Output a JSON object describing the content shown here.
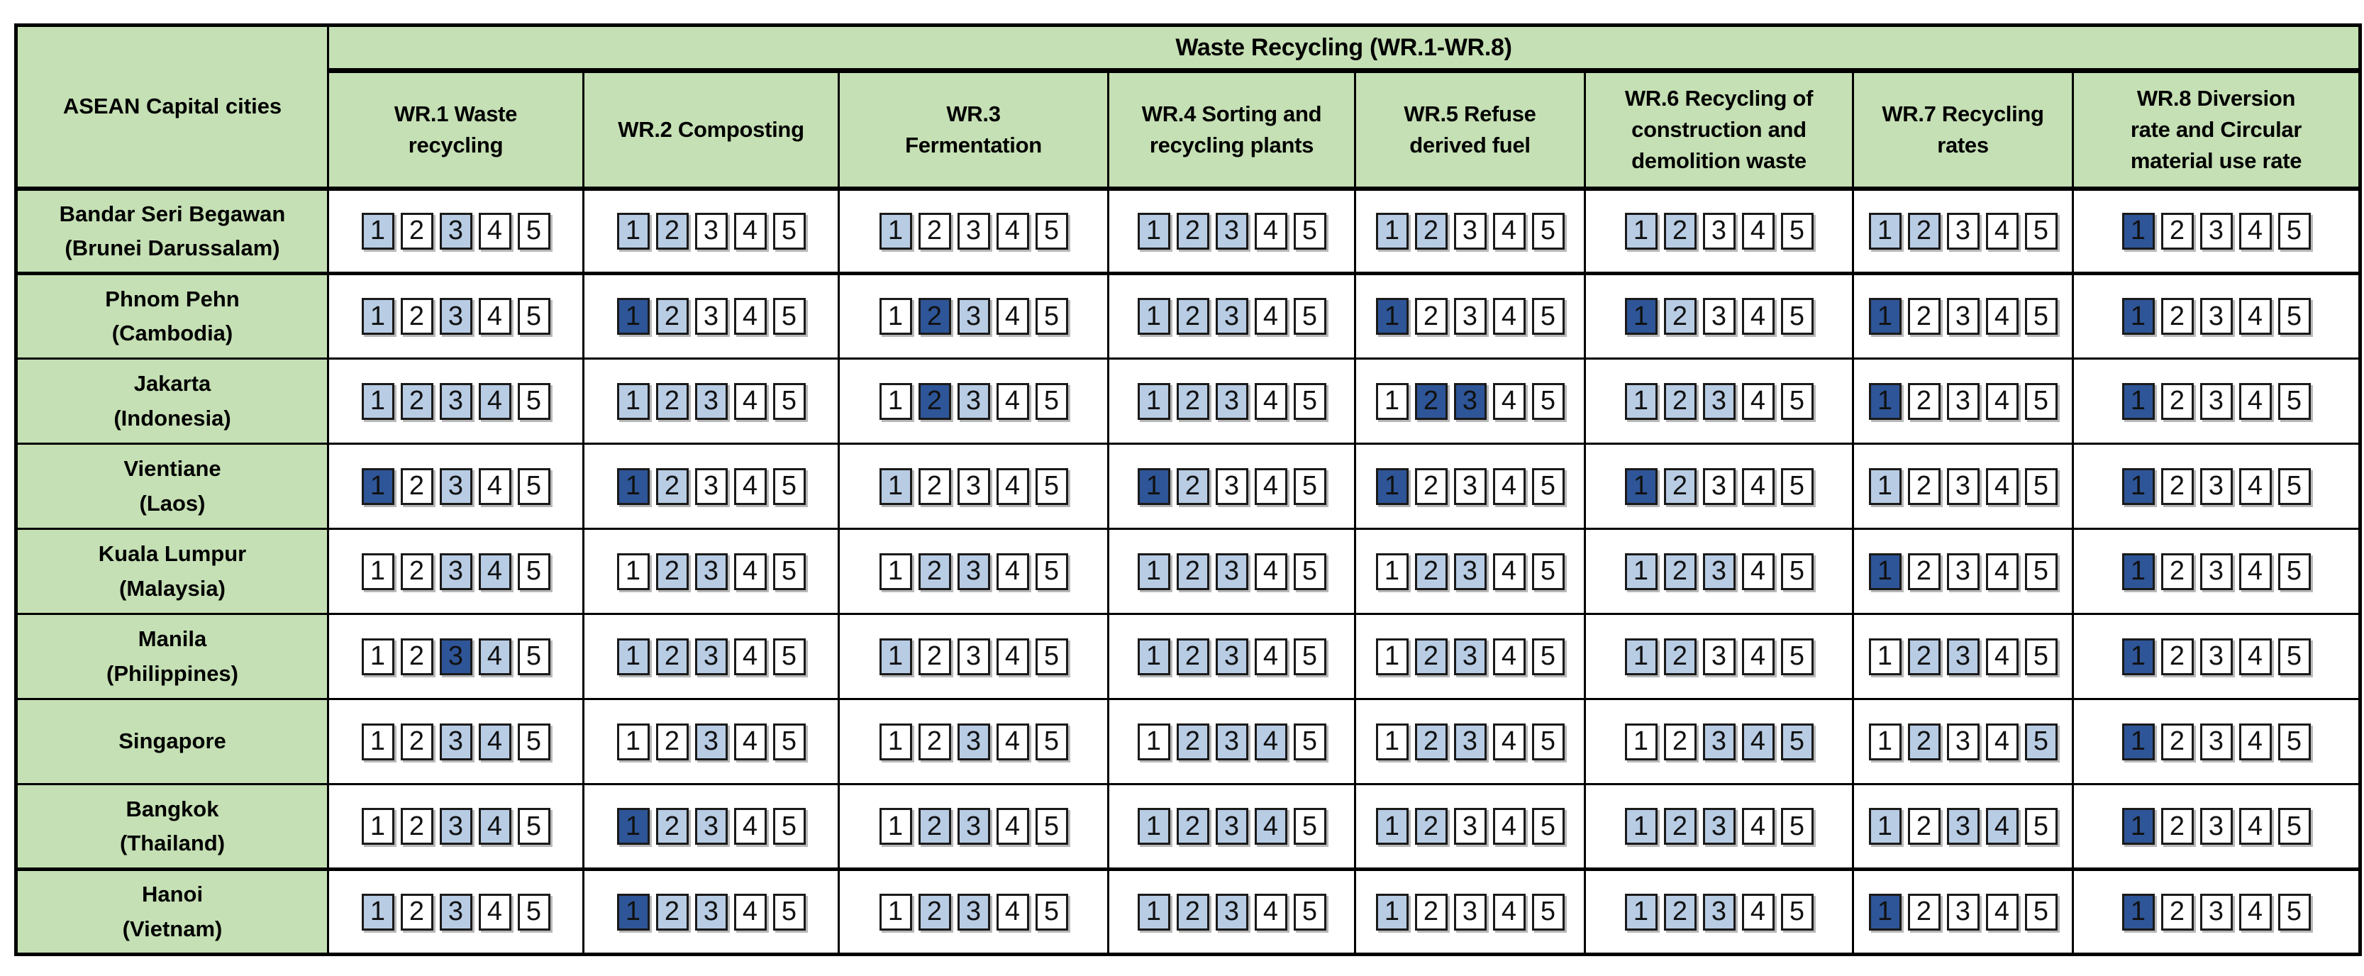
{
  "table_title": "Waste Recycling (WR.1-WR.8)",
  "corner_header": "ASEAN Capital cities",
  "scale": [
    "1",
    "2",
    "3",
    "4",
    "5"
  ],
  "colors": {
    "header_green": "#C5E0B4",
    "box_unselected": "#FFFFFF",
    "box_selected_light": "#B8CCE4",
    "box_selected_dark": "#2E5597",
    "box_border": "#1A1A1A",
    "grid_border": "#000000"
  },
  "rating_legend": {
    "0": "not selected (white)",
    "1": "selected (light blue)",
    "2": "selected (dark blue)"
  },
  "columns": [
    {
      "id": "WR.1",
      "label": "WR.1 Waste\nrecycling"
    },
    {
      "id": "WR.2",
      "label": "WR.2 Composting"
    },
    {
      "id": "WR.3",
      "label": "WR.3\nFermentation"
    },
    {
      "id": "WR.4",
      "label": "WR.4 Sorting and\nrecycling plants"
    },
    {
      "id": "WR.5",
      "label": "WR.5 Refuse\nderived fuel"
    },
    {
      "id": "WR.6",
      "label": "WR.6 Recycling of\nconstruction and\ndemolition waste"
    },
    {
      "id": "WR.7",
      "label": "WR.7 Recycling\nrates"
    },
    {
      "id": "WR.8",
      "label": "WR.8 Diversion\nrate and Circular\nmaterial use rate"
    }
  ],
  "rows": [
    {
      "city": "Bandar Seri Begawan",
      "country": "(Brunei Darussalam)",
      "cells": [
        [
          1,
          0,
          1,
          0,
          0
        ],
        [
          1,
          1,
          0,
          0,
          0
        ],
        [
          1,
          0,
          0,
          0,
          0
        ],
        [
          1,
          1,
          1,
          0,
          0
        ],
        [
          1,
          1,
          0,
          0,
          0
        ],
        [
          1,
          1,
          0,
          0,
          0
        ],
        [
          1,
          1,
          0,
          0,
          0
        ],
        [
          2,
          0,
          0,
          0,
          0
        ]
      ]
    },
    {
      "city": "Phnom Pehn",
      "country": "(Cambodia)",
      "cells": [
        [
          1,
          0,
          1,
          0,
          0
        ],
        [
          2,
          1,
          0,
          0,
          0
        ],
        [
          0,
          2,
          1,
          0,
          0
        ],
        [
          1,
          1,
          1,
          0,
          0
        ],
        [
          2,
          0,
          0,
          0,
          0
        ],
        [
          2,
          1,
          0,
          0,
          0
        ],
        [
          2,
          0,
          0,
          0,
          0
        ],
        [
          2,
          0,
          0,
          0,
          0
        ]
      ]
    },
    {
      "city": "Jakarta",
      "country": "(Indonesia)",
      "cells": [
        [
          1,
          1,
          1,
          1,
          0
        ],
        [
          1,
          1,
          1,
          0,
          0
        ],
        [
          0,
          2,
          1,
          0,
          0
        ],
        [
          1,
          1,
          1,
          0,
          0
        ],
        [
          0,
          2,
          2,
          0,
          0
        ],
        [
          1,
          1,
          1,
          0,
          0
        ],
        [
          2,
          0,
          0,
          0,
          0
        ],
        [
          2,
          0,
          0,
          0,
          0
        ]
      ]
    },
    {
      "city": "Vientiane",
      "country": "(Laos)",
      "cells": [
        [
          2,
          0,
          1,
          0,
          0
        ],
        [
          2,
          1,
          0,
          0,
          0
        ],
        [
          1,
          0,
          0,
          0,
          0
        ],
        [
          2,
          1,
          0,
          0,
          0
        ],
        [
          2,
          0,
          0,
          0,
          0
        ],
        [
          2,
          1,
          0,
          0,
          0
        ],
        [
          1,
          0,
          0,
          0,
          0
        ],
        [
          2,
          0,
          0,
          0,
          0
        ]
      ]
    },
    {
      "city": "Kuala Lumpur",
      "country": "(Malaysia)",
      "cells": [
        [
          0,
          0,
          1,
          1,
          0
        ],
        [
          0,
          1,
          1,
          0,
          0
        ],
        [
          0,
          1,
          1,
          0,
          0
        ],
        [
          1,
          1,
          1,
          0,
          0
        ],
        [
          0,
          1,
          1,
          0,
          0
        ],
        [
          1,
          1,
          1,
          0,
          0
        ],
        [
          2,
          0,
          0,
          0,
          0
        ],
        [
          2,
          0,
          0,
          0,
          0
        ]
      ]
    },
    {
      "city": "Manila",
      "country": "(Philippines)",
      "cells": [
        [
          0,
          0,
          2,
          1,
          0
        ],
        [
          1,
          1,
          1,
          0,
          0
        ],
        [
          1,
          0,
          0,
          0,
          0
        ],
        [
          1,
          1,
          1,
          0,
          0
        ],
        [
          0,
          1,
          1,
          0,
          0
        ],
        [
          1,
          1,
          0,
          0,
          0
        ],
        [
          0,
          1,
          1,
          0,
          0
        ],
        [
          2,
          0,
          0,
          0,
          0
        ]
      ]
    },
    {
      "city": "Singapore",
      "country": "",
      "cells": [
        [
          0,
          0,
          1,
          1,
          0
        ],
        [
          0,
          0,
          1,
          0,
          0
        ],
        [
          0,
          0,
          1,
          0,
          0
        ],
        [
          0,
          1,
          1,
          1,
          0
        ],
        [
          0,
          1,
          1,
          0,
          0
        ],
        [
          0,
          0,
          1,
          1,
          1
        ],
        [
          0,
          1,
          0,
          0,
          1
        ],
        [
          2,
          0,
          0,
          0,
          0
        ]
      ]
    },
    {
      "city": "Bangkok",
      "country": "(Thailand)",
      "cells": [
        [
          0,
          0,
          1,
          1,
          0
        ],
        [
          2,
          1,
          1,
          0,
          0
        ],
        [
          0,
          1,
          1,
          0,
          0
        ],
        [
          1,
          1,
          1,
          1,
          0
        ],
        [
          1,
          1,
          0,
          0,
          0
        ],
        [
          1,
          1,
          1,
          0,
          0
        ],
        [
          1,
          0,
          1,
          1,
          0
        ],
        [
          2,
          0,
          0,
          0,
          0
        ]
      ]
    },
    {
      "city": "Hanoi",
      "country": "(Vietnam)",
      "cells": [
        [
          1,
          0,
          1,
          0,
          0
        ],
        [
          2,
          1,
          1,
          0,
          0
        ],
        [
          0,
          1,
          1,
          0,
          0
        ],
        [
          1,
          1,
          1,
          0,
          0
        ],
        [
          1,
          0,
          0,
          0,
          0
        ],
        [
          1,
          1,
          1,
          0,
          0
        ],
        [
          2,
          0,
          0,
          0,
          0
        ],
        [
          2,
          0,
          0,
          0,
          0
        ]
      ]
    }
  ]
}
